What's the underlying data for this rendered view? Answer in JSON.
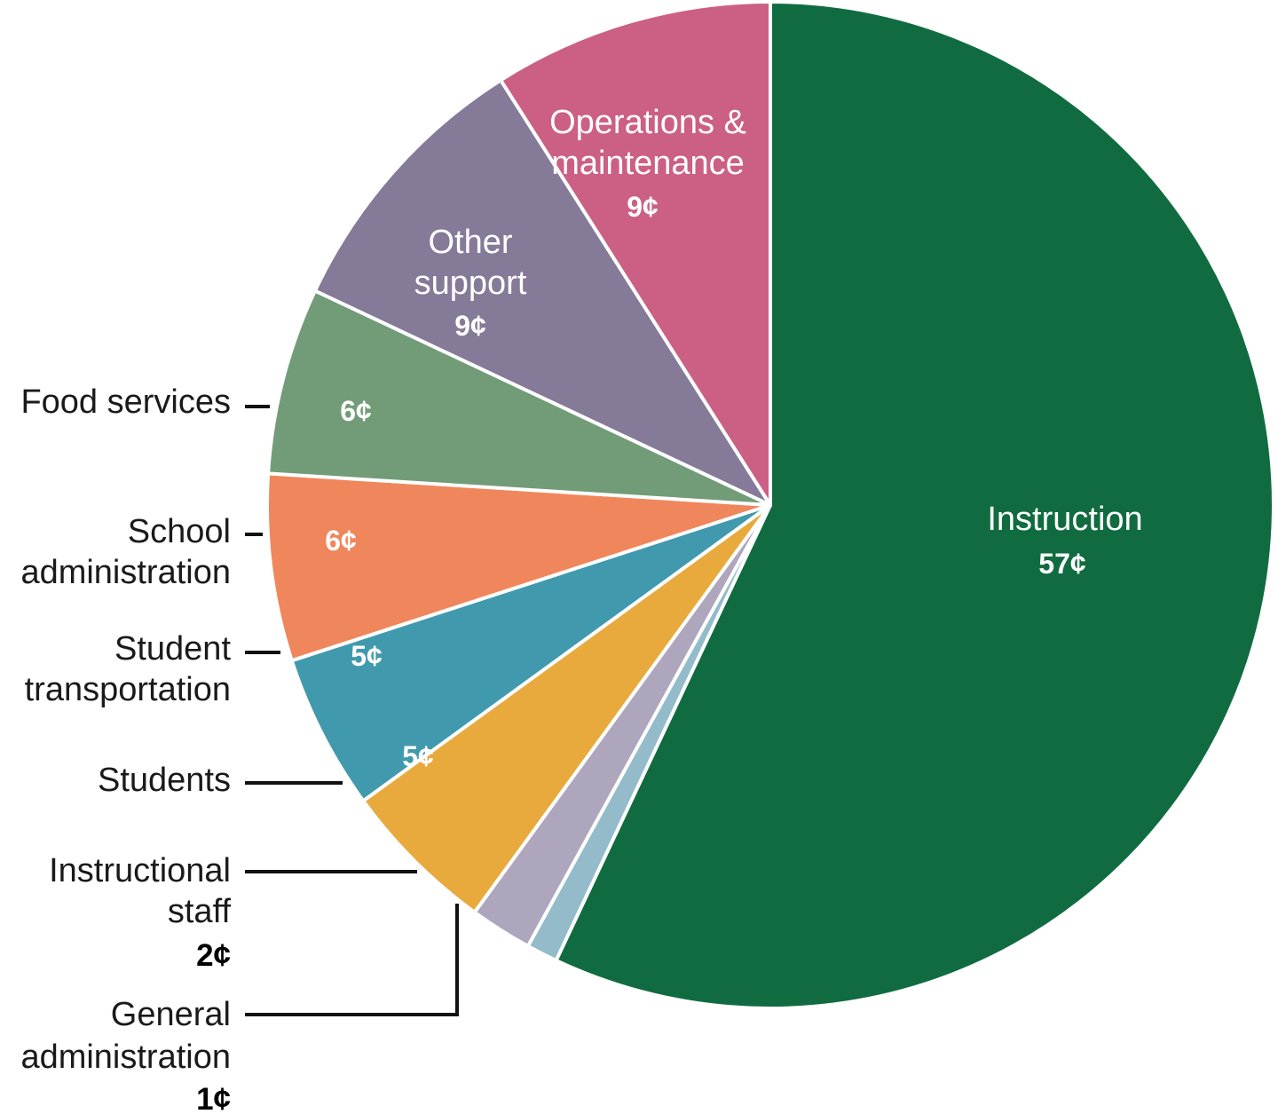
{
  "chart_data": {
    "type": "pie",
    "unit": "¢",
    "slices": [
      {
        "label": "Instruction",
        "value": 57,
        "value_label": "57¢",
        "color": "#106c40",
        "placement": "inside"
      },
      {
        "label": "General administration",
        "value": 1,
        "value_label": "1¢",
        "color": "#93bbca",
        "placement": "outside"
      },
      {
        "label": "Instructional staff",
        "value": 2,
        "value_label": "2¢",
        "color": "#ada6bd",
        "placement": "outside"
      },
      {
        "label": "Students",
        "value": 5,
        "value_label": "5¢",
        "color": "#e8aa3c",
        "placement": "outside"
      },
      {
        "label": "Student transportation",
        "value": 5,
        "value_label": "5¢",
        "color": "#4199ad",
        "placement": "outside"
      },
      {
        "label": "School administration",
        "value": 6,
        "value_label": "6¢",
        "color": "#f0865b",
        "placement": "outside"
      },
      {
        "label": "Food services",
        "value": 6,
        "value_label": "6¢",
        "color": "#719c77",
        "placement": "outside"
      },
      {
        "label": "Other support",
        "value": 9,
        "value_label": "9¢",
        "color": "#857a97",
        "placement": "inside"
      },
      {
        "label": "Operations & maintenance",
        "value": 9,
        "value_label": "9¢",
        "color": "#cc5f84",
        "placement": "inside"
      }
    ]
  },
  "labels": {
    "instruction": {
      "line1": "Instruction",
      "value": "57¢"
    },
    "operations": {
      "line1": "Operations &",
      "line2": "maintenance",
      "value": "9¢"
    },
    "other_support": {
      "line1": "Other",
      "line2": "support",
      "value": "9¢"
    },
    "food_services": {
      "line1": "Food services",
      "value": "6¢"
    },
    "school_admin": {
      "line1": "School",
      "line2": "administration",
      "value": "6¢"
    },
    "student_transport": {
      "line1": "Student",
      "line2": "transportation",
      "value": "5¢"
    },
    "students": {
      "line1": "Students",
      "value": "5¢"
    },
    "instructional_staff": {
      "line1": "Instructional",
      "line2": "staff",
      "value": "2¢"
    },
    "general_admin": {
      "line1": "General",
      "line2": "administration",
      "value": "1¢"
    }
  }
}
